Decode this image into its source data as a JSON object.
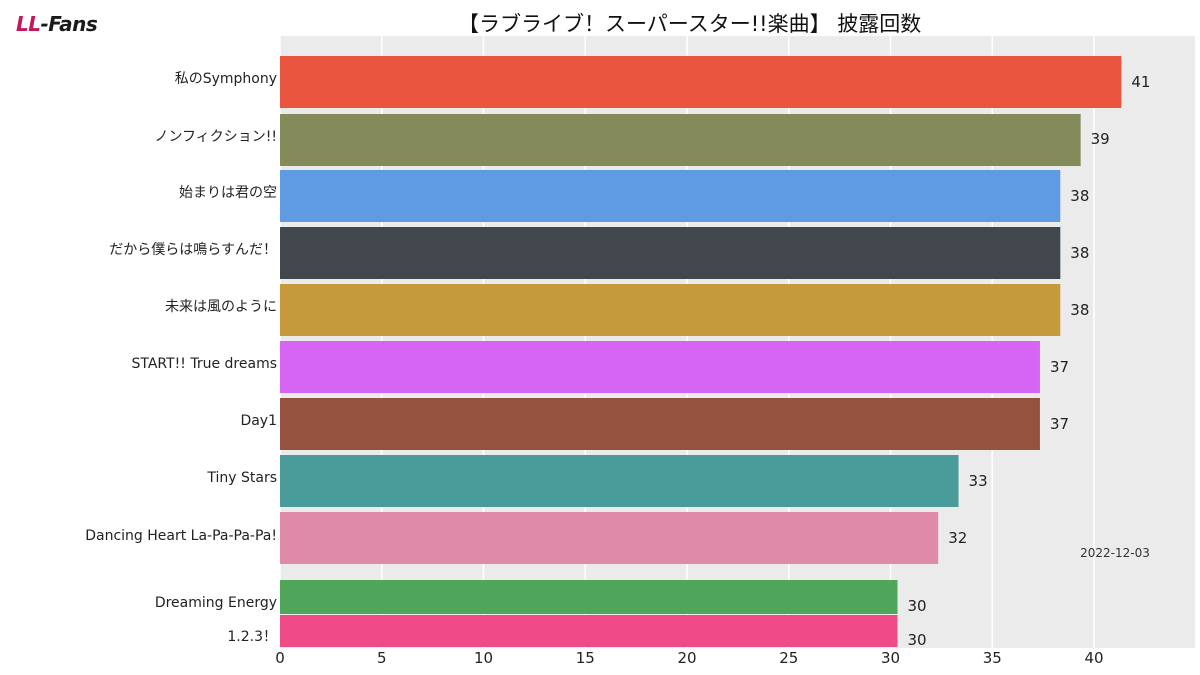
{
  "header": {
    "logo_prefix": "LL",
    "logo_suffix": "-Fans",
    "title": "【ラブライブ！スーパースター!!楽曲】 披露回数"
  },
  "chart_data": {
    "type": "bar",
    "orientation": "horizontal",
    "title": "【ラブライブ！スーパースター!!楽曲】 披露回数",
    "date_annotation": "2022-12-03",
    "xlim": [
      0,
      45
    ],
    "xticks": [
      0,
      5,
      10,
      15,
      20,
      25,
      30,
      35,
      40
    ],
    "grid": true,
    "categories": [
      "私のSymphony",
      "ノンフィクション!!",
      "始まりは君の空",
      "だから僕らは鳴らすんだ！",
      "未来は風のように",
      "START!! True dreams",
      "Day1",
      "Tiny Stars",
      "Dancing Heart La-Pa-Pa-Pa!",
      "Dreaming Energy",
      "1.2.3！"
    ],
    "values": [
      41,
      39,
      38,
      38,
      38,
      37,
      37,
      33,
      32,
      30,
      30
    ],
    "colors": [
      "#e9553e",
      "#858a5a",
      "#5f9be3",
      "#42474d",
      "#c49a3c",
      "#d665f4",
      "#95533f",
      "#4a9c9a",
      "#e08aaa",
      "#4fa55a",
      "#ee4b87"
    ]
  }
}
